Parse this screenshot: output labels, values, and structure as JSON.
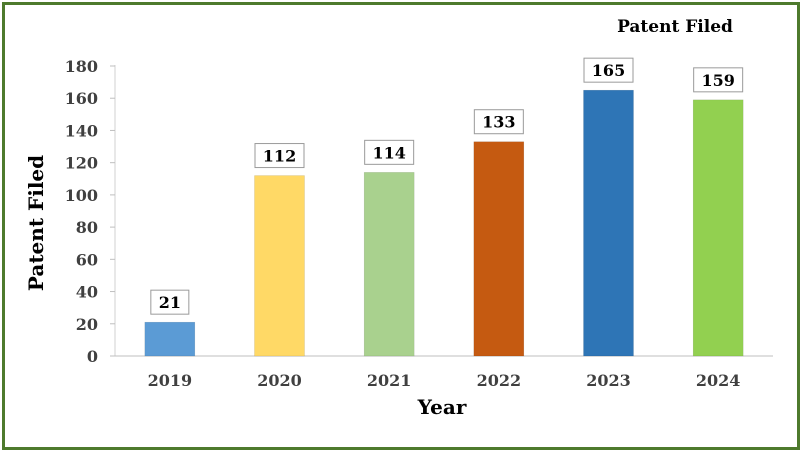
{
  "chart_data": {
    "type": "bar",
    "title": "Patent Filed",
    "xlabel": "Year",
    "ylabel": "Patent Filed",
    "categories": [
      "2019",
      "2020",
      "2021",
      "2022",
      "2023",
      "2024"
    ],
    "values": [
      21,
      112,
      114,
      133,
      165,
      159
    ],
    "colors": [
      "#5b9bd5",
      "#ffd966",
      "#a9d18e",
      "#c55a11",
      "#2e75b6",
      "#92d050"
    ],
    "ylim": [
      0,
      180
    ],
    "yticks": [
      0,
      20,
      40,
      60,
      80,
      100,
      120,
      140,
      160,
      180
    ],
    "grid": false,
    "legend": "none",
    "frame_color": "#4e7a2d"
  }
}
